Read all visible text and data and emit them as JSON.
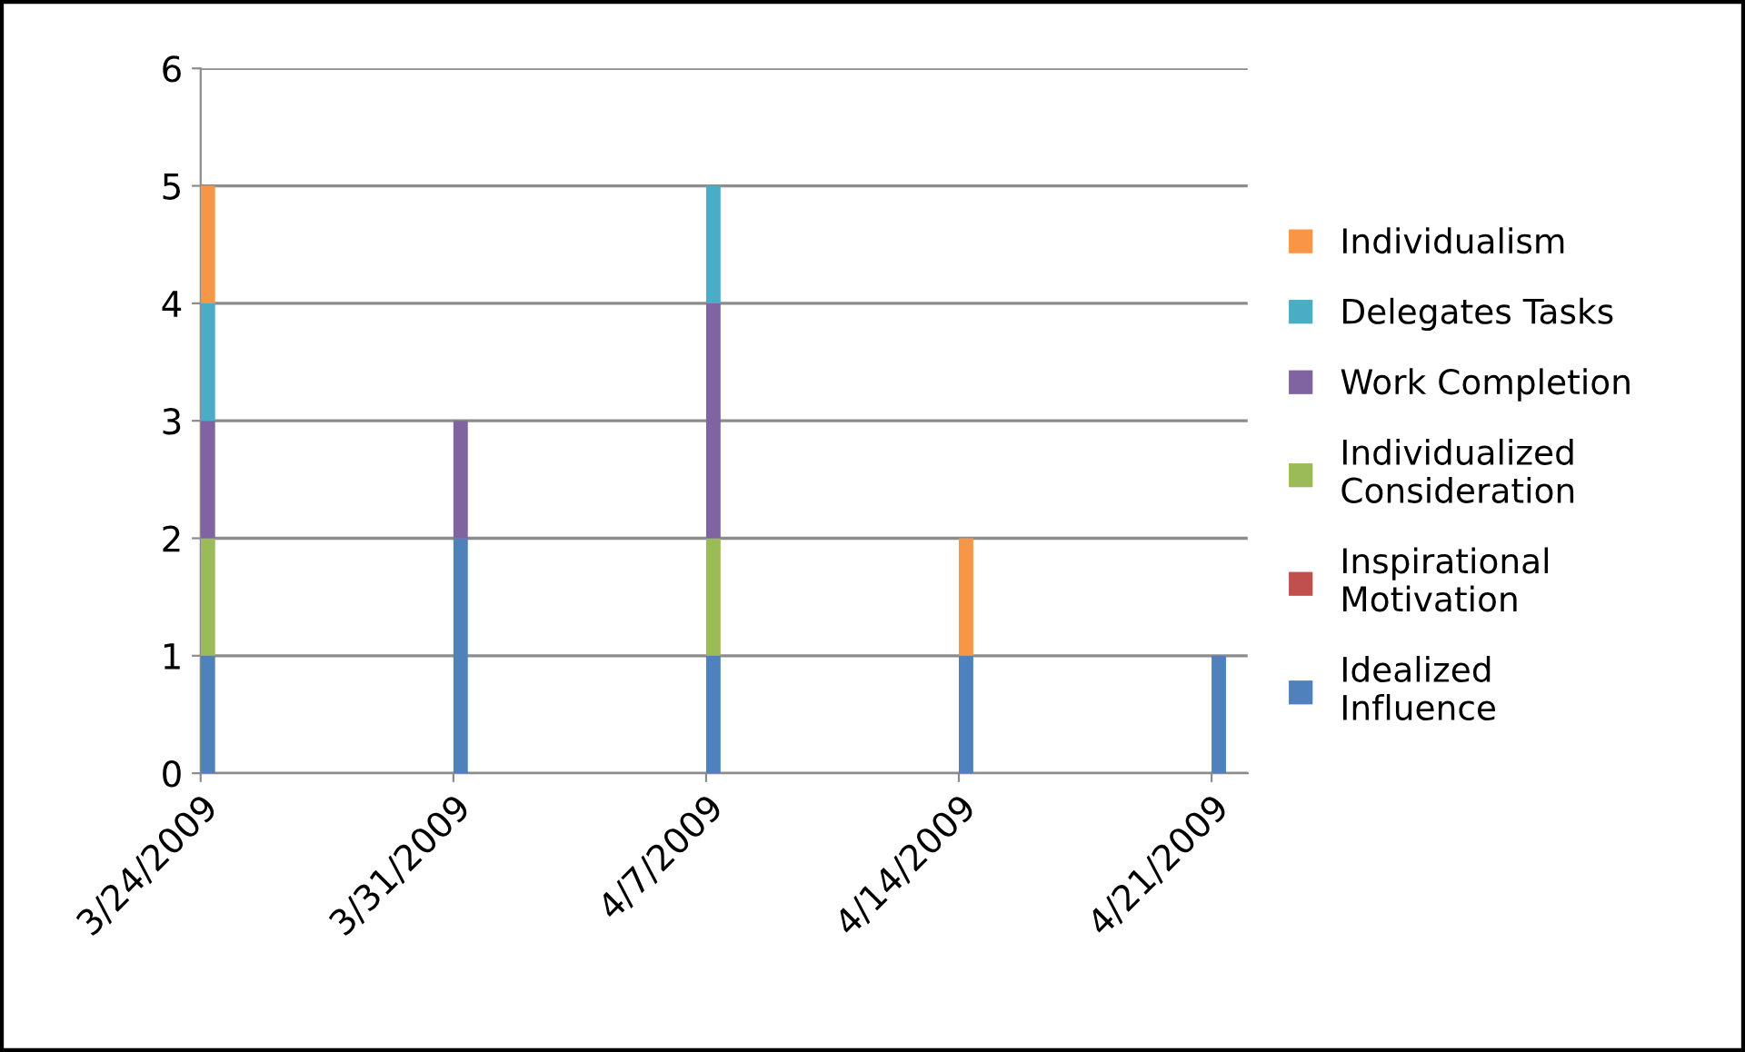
{
  "chart_data": {
    "type": "bar",
    "stacked": true,
    "x": [
      "2009-03-24",
      "2009-03-31",
      "2009-04-07",
      "2009-04-14",
      "2009-04-21"
    ],
    "series": [
      {
        "name": "Idealized Influence",
        "color": "#4f81bd",
        "values": [
          1,
          2,
          1,
          1,
          1
        ]
      },
      {
        "name": "Inspirational Motivation",
        "color": "#c0504d",
        "values": [
          0,
          0,
          0,
          0,
          0
        ]
      },
      {
        "name": "Individualized Consideration",
        "color": "#9bbb59",
        "values": [
          1,
          0,
          1,
          0,
          0
        ]
      },
      {
        "name": "Work Completion",
        "color": "#8064a2",
        "values": [
          1,
          1,
          2,
          0,
          0
        ]
      },
      {
        "name": "Delegates Tasks",
        "color": "#4bacc6",
        "values": [
          1,
          0,
          1,
          0,
          0
        ]
      },
      {
        "name": "Individualism",
        "color": "#f79646",
        "values": [
          1,
          0,
          0,
          1,
          0
        ]
      }
    ],
    "xlim": [
      "2009-03-24",
      "2009-04-22"
    ],
    "xticks": [
      {
        "value": "2009-03-24",
        "label": "3/24/2009"
      },
      {
        "value": "2009-03-31",
        "label": "3/31/2009"
      },
      {
        "value": "2009-04-07",
        "label": "4/7/2009"
      },
      {
        "value": "2009-04-14",
        "label": "4/14/2009"
      },
      {
        "value": "2009-04-21",
        "label": "4/21/2009"
      }
    ],
    "ylim": [
      0,
      6
    ],
    "yticks": [
      0,
      1,
      2,
      3,
      4,
      5,
      6
    ],
    "grid": "y",
    "legend": "right"
  }
}
